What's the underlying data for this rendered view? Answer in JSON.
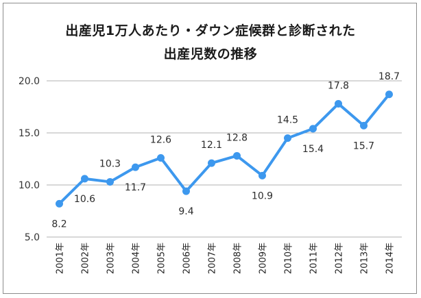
{
  "chart_data": {
    "type": "line",
    "title_line1": "出産児1万人あたり・ダウン症候群と診断された",
    "title_line2": "出産児数の推移",
    "xlabel": "",
    "ylabel": "",
    "ylim": [
      5.0,
      20.0
    ],
    "yticks": [
      "5.0",
      "10.0",
      "15.0",
      "20.0"
    ],
    "grid": true,
    "legend": "none",
    "categories": [
      "2001年",
      "2002年",
      "2003年",
      "2004年",
      "2005年",
      "2006年",
      "2007年",
      "2008年",
      "2009年",
      "2010年",
      "2011年",
      "2012年",
      "2013年",
      "2014年"
    ],
    "values": [
      8.2,
      10.6,
      10.3,
      11.7,
      12.6,
      9.4,
      12.1,
      12.8,
      10.9,
      14.5,
      15.4,
      17.8,
      15.7,
      18.7
    ],
    "value_labels": [
      "8.2",
      "10.6",
      "10.3",
      "11.7",
      "12.6",
      "9.4",
      "12.1",
      "12.8",
      "10.9",
      "14.5",
      "15.4",
      "17.8",
      "15.7",
      "18.7"
    ],
    "label_position": [
      "below",
      "below",
      "above",
      "below",
      "above",
      "below",
      "above",
      "above",
      "below",
      "above",
      "below",
      "above",
      "below",
      "above"
    ],
    "series_color": "#3d98ee",
    "grid_color": "#b0b0b0"
  }
}
